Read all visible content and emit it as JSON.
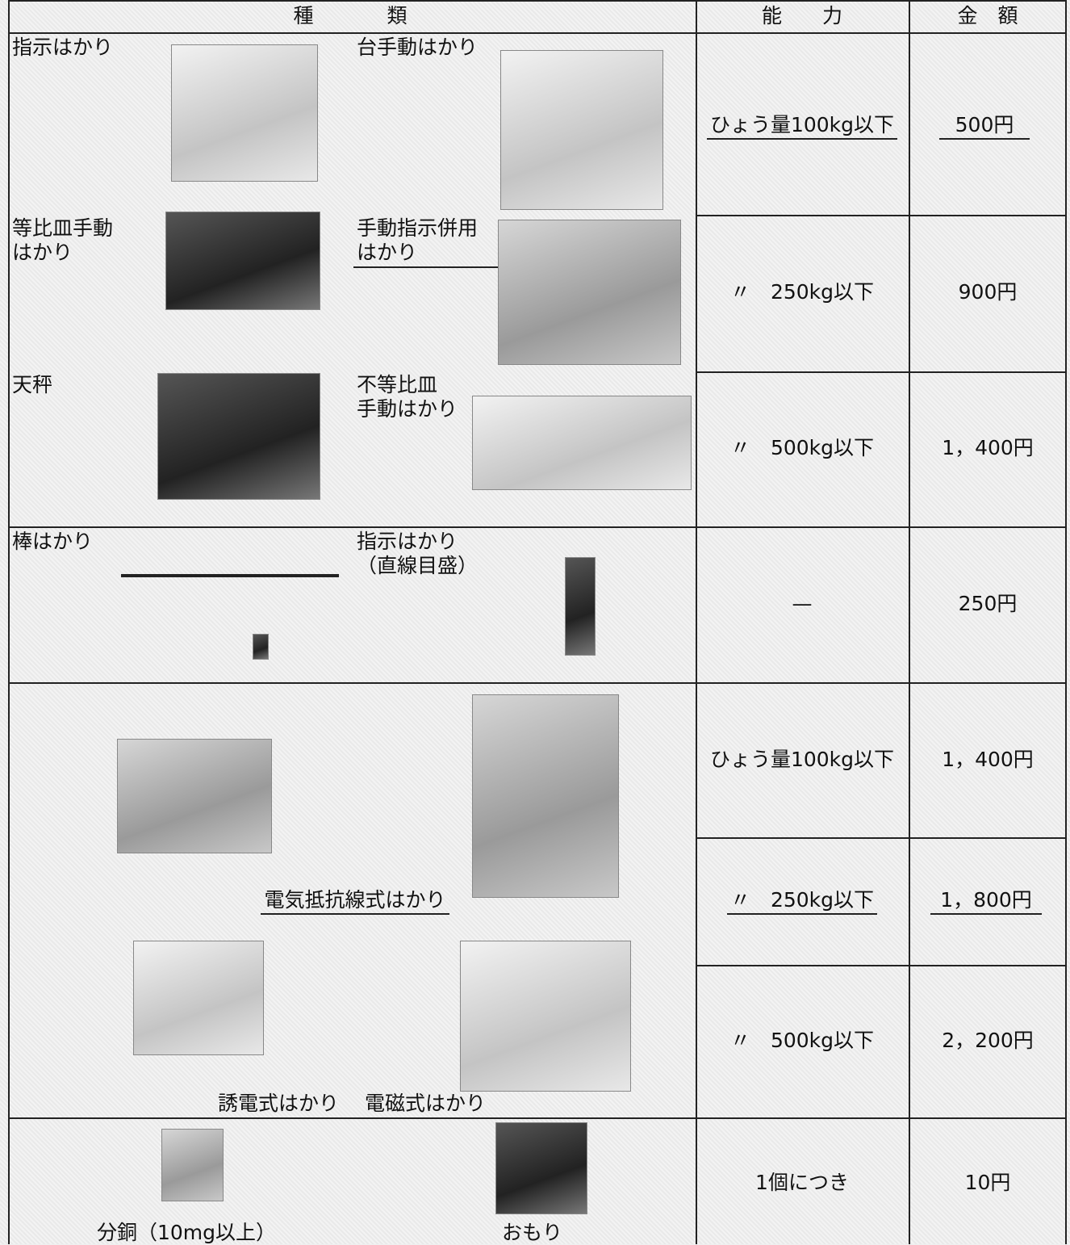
{
  "header": [
    "種　　　類",
    "能　　力",
    "金　額"
  ],
  "groups": [
    {
      "types": [
        [
          "指示はかり"
        ],
        [
          "台手動はかり"
        ],
        [
          "等比皿手動",
          "はかり"
        ],
        [
          "手動指示併用",
          "はかり"
        ],
        [
          "天秤"
        ],
        [
          "不等比皿",
          "手動はかり"
        ]
      ],
      "fees": [
        {
          "capacity": "ひょう量100kg以下",
          "price": "500円"
        },
        {
          "capacity": "〃　250kg以下",
          "price": "900円"
        },
        {
          "capacity": "〃　500kg以下",
          "price": "1，400円"
        }
      ]
    },
    {
      "types": [
        [
          "棒はかり"
        ],
        [
          "指示はかり",
          "（直線目盛）"
        ]
      ],
      "fees": [
        {
          "capacity": "—",
          "price": "250円"
        }
      ]
    },
    {
      "types": [
        [
          "電気抵抗線式はかり"
        ],
        [
          "誘電式はかり"
        ],
        [
          "電磁式はかり"
        ]
      ],
      "fees": [
        {
          "capacity": "ひょう量100kg以下",
          "price": "1，400円"
        },
        {
          "capacity": "〃　250kg以下",
          "price": "1，800円"
        },
        {
          "capacity": "〃　500kg以下",
          "price": "2，200円"
        }
      ]
    },
    {
      "types": [
        [
          "分銅（10mg以上）"
        ],
        [
          "おもり"
        ]
      ],
      "fees": [
        {
          "capacity": "1個につき",
          "price": "10円"
        }
      ]
    }
  ]
}
